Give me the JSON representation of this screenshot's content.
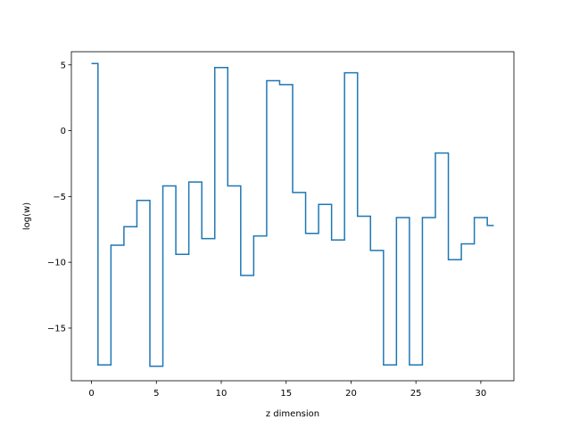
{
  "chart_data": {
    "type": "line",
    "step": "mid",
    "title": "",
    "xlabel": "z dimension",
    "ylabel": "log(w)",
    "xlim": [
      -1.55,
      32.55
    ],
    "ylim": [
      -19.0,
      6.0
    ],
    "xticks": [
      0,
      5,
      10,
      15,
      20,
      25,
      30
    ],
    "yticks": [
      5,
      0,
      -5,
      -10,
      -15
    ],
    "ytick_labels": [
      "5",
      "0",
      "−5",
      "−10",
      "−15"
    ],
    "series": [
      {
        "color": "#1f77b4",
        "x": [
          0,
          1,
          2,
          3,
          4,
          5,
          6,
          7,
          8,
          9,
          10,
          11,
          12,
          13,
          14,
          15,
          16,
          17,
          18,
          19,
          20,
          21,
          22,
          23,
          24,
          25,
          26,
          27,
          28,
          29,
          30,
          31
        ],
        "y": [
          5.1,
          -17.8,
          -8.7,
          -7.3,
          -5.3,
          -17.9,
          -4.2,
          -9.4,
          -3.9,
          -8.2,
          4.8,
          -4.2,
          -11.0,
          -8.0,
          3.8,
          3.5,
          -4.7,
          -7.8,
          -5.6,
          -8.3,
          4.4,
          -6.5,
          -9.1,
          -17.8,
          -6.6,
          -17.8,
          -6.6,
          -1.7,
          -9.8,
          -8.6,
          -6.6,
          -7.2
        ]
      }
    ]
  }
}
